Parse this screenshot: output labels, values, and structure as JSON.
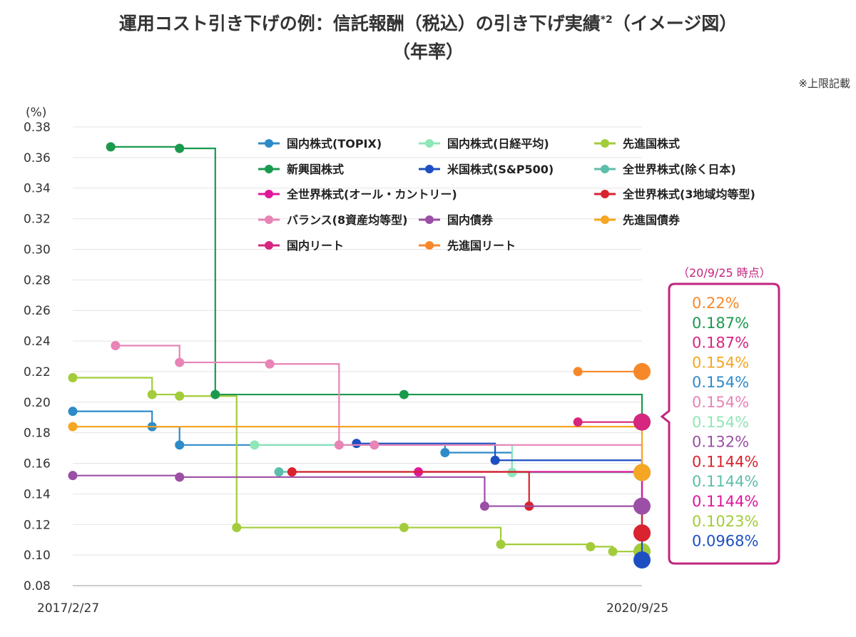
{
  "header": {
    "title_line1": "運用コスト引き下げの例：信託報酬（税込）の引き下げ実績",
    "title_sup": "*2",
    "title_line1_suffix": "（イメージ図）",
    "title_line2": "（年率）",
    "note": "※上限記載"
  },
  "summary_box": {
    "heading": "（20/9/25 時点）",
    "color": "#c2247f"
  },
  "chart_data": {
    "type": "line",
    "step": true,
    "title": "運用コスト引き下げの例：信託報酬（税込）の引き下げ実績*2（イメージ図）（年率）",
    "ylabel": "(%)",
    "ylim": [
      0.08,
      0.38
    ],
    "yticks": [
      "0.38",
      "0.36",
      "0.34",
      "0.32",
      "0.30",
      "0.28",
      "0.26",
      "0.24",
      "0.22",
      "0.20",
      "0.18",
      "0.16",
      "0.14",
      "0.12",
      "0.10",
      "0.08"
    ],
    "x_start": "2017-02-27",
    "x_end": "2020-09-25",
    "xtick_labels": [
      "2017/2/27",
      "2020/9/25"
    ],
    "grid": true,
    "legend_position": "top",
    "series": [
      {
        "name": "国内株式(TOPIX)",
        "color": "#2e8bc9",
        "points": [
          [
            "2017-02-27",
            0.194
          ],
          [
            "2017-08-28",
            0.184
          ],
          [
            "2017-10-30",
            0.172
          ],
          [
            "2019-07-01",
            0.167
          ],
          [
            "2019-12-02",
            0.154
          ],
          [
            "2020-09-25",
            0.154
          ]
        ]
      },
      {
        "name": "国内株式(日経平均)",
        "color": "#8fe6b7",
        "points": [
          [
            "2018-04-20",
            0.172
          ],
          [
            "2019-12-02",
            0.154
          ],
          [
            "2020-09-25",
            0.154
          ]
        ]
      },
      {
        "name": "先進国株式",
        "color": "#a3cc3a",
        "points": [
          [
            "2017-02-27",
            0.216
          ],
          [
            "2017-08-28",
            0.205
          ],
          [
            "2017-10-30",
            0.204
          ],
          [
            "2018-03-10",
            0.118
          ],
          [
            "2019-03-29",
            0.118
          ],
          [
            "2019-11-06",
            0.107
          ],
          [
            "2020-05-30",
            0.1055
          ],
          [
            "2020-07-20",
            0.1023
          ],
          [
            "2020-09-25",
            0.1023
          ]
        ]
      },
      {
        "name": "新興国株式",
        "color": "#1a9a4e",
        "points": [
          [
            "2017-05-25",
            0.367
          ],
          [
            "2017-10-30",
            0.366
          ],
          [
            "2018-01-20",
            0.205
          ],
          [
            "2019-03-29",
            0.205
          ],
          [
            "2020-09-25",
            0.187
          ]
        ]
      },
      {
        "name": "米国株式(S&P500)",
        "color": "#1e4fc2",
        "points": [
          [
            "2018-12-10",
            0.173
          ],
          [
            "2019-10-24",
            0.162
          ],
          [
            "2020-09-25",
            0.0968
          ]
        ]
      },
      {
        "name": "全世界株式(除く日本)",
        "color": "#5cbfaa",
        "points": [
          [
            "2018-06-15",
            0.1544
          ],
          [
            "2020-09-25",
            0.1144
          ]
        ]
      },
      {
        "name": "全世界株式(オール・カントリー)",
        "color": "#e0169a",
        "points": [
          [
            "2019-05-01",
            0.1544
          ],
          [
            "2020-09-25",
            0.1144
          ]
        ]
      },
      {
        "name": "全世界株式(3地域均等型)",
        "color": "#d9232e",
        "points": [
          [
            "2018-07-15",
            0.1544
          ],
          [
            "2020-01-10",
            0.132
          ],
          [
            "2020-09-25",
            0.1144
          ]
        ]
      },
      {
        "name": "バランス(8資産均等型)",
        "color": "#e884b6",
        "points": [
          [
            "2017-06-05",
            0.237
          ],
          [
            "2017-10-30",
            0.226
          ],
          [
            "2018-05-25",
            0.225
          ],
          [
            "2018-10-31",
            0.172
          ],
          [
            "2019-01-20",
            0.172
          ],
          [
            "2020-09-25",
            0.154
          ]
        ]
      },
      {
        "name": "国内債券",
        "color": "#9c4fa6",
        "points": [
          [
            "2017-02-27",
            0.152
          ],
          [
            "2017-10-30",
            0.151
          ],
          [
            "2019-09-30",
            0.132
          ],
          [
            "2020-09-25",
            0.132
          ]
        ]
      },
      {
        "name": "先進国債券",
        "color": "#f5a623",
        "points": [
          [
            "2017-02-27",
            0.184
          ],
          [
            "2020-09-25",
            0.154
          ]
        ]
      },
      {
        "name": "国内リート",
        "color": "#d6267f",
        "points": [
          [
            "2020-05-01",
            0.187
          ],
          [
            "2020-09-25",
            0.187
          ]
        ]
      },
      {
        "name": "先進国リート",
        "color": "#f7882a",
        "points": [
          [
            "2020-05-01",
            0.22
          ],
          [
            "2020-09-25",
            0.22
          ]
        ]
      }
    ],
    "end_values": [
      {
        "label": "0.22%",
        "color": "#f7882a"
      },
      {
        "label": "0.187%",
        "color": "#1a9a4e"
      },
      {
        "label": "0.187%",
        "color": "#d6267f"
      },
      {
        "label": "0.154%",
        "color": "#f5a623"
      },
      {
        "label": "0.154%",
        "color": "#2e8bc9"
      },
      {
        "label": "0.154%",
        "color": "#e884b6"
      },
      {
        "label": "0.154%",
        "color": "#8fe6b7"
      },
      {
        "label": "0.132%",
        "color": "#9c4fa6"
      },
      {
        "label": "0.1144%",
        "color": "#d9232e"
      },
      {
        "label": "0.1144%",
        "color": "#5cbfaa"
      },
      {
        "label": "0.1144%",
        "color": "#e0169a"
      },
      {
        "label": "0.1023%",
        "color": "#a3cc3a"
      },
      {
        "label": "0.0968%",
        "color": "#1e4fc2"
      }
    ]
  }
}
